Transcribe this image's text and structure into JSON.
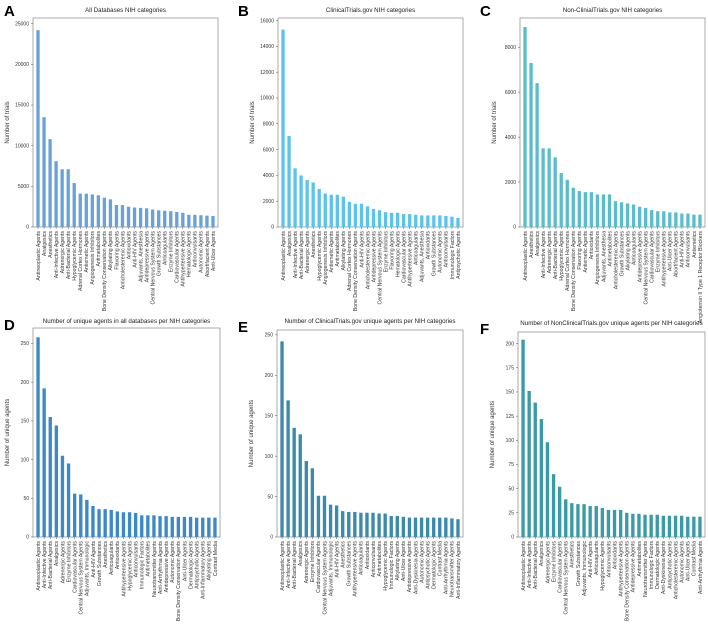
{
  "chart_data": [
    {
      "panel": "A",
      "type": "bar",
      "title": "All Databases NIH categories",
      "xlabel": "",
      "ylabel": "Number of trials",
      "ylim": [
        0,
        25700
      ],
      "yticks": [
        0,
        5000,
        10000,
        15000,
        20000,
        25000
      ],
      "color": "#6aa2d8",
      "grid": false,
      "categories": [
        "Antineoplastic Agents",
        "Analgesics",
        "Anesthetics",
        "Anti-Infective Agents",
        "Adrenergic Agents",
        "Anti-Bacterial Agents",
        "Hypoglycemic Agents",
        "Adrenal Cortex Hormones",
        "Antiemetic Agents",
        "Angiogenesis Inhibitors",
        "Antimetabolites",
        "Bone Density Conservation Agents",
        "Alkylating Agents",
        "Flavoring Agents",
        "Anticholesteremic Agents",
        "Antioxidants",
        "Anti-HIV Agents",
        "Adjuvants, Anesthesia",
        "Antidepressive Agents",
        "Central Nervous System Agents",
        "Growth Substances",
        "Anticoagulants",
        "Enzyme Inhibitors",
        "Cardiovascular Agents",
        "Antihypertensive Agents",
        "Hematologic Agents",
        "Anticonvulsants",
        "Autonomic Agents",
        "Abortifacient Agents",
        "Anti-Ulcer Agents"
      ],
      "values": [
        24200,
        13500,
        10800,
        8100,
        7100,
        7100,
        5400,
        4100,
        4100,
        4000,
        3900,
        3600,
        3400,
        2700,
        2700,
        2500,
        2400,
        2350,
        2300,
        2150,
        2050,
        2000,
        1950,
        1850,
        1750,
        1500,
        1500,
        1450,
        1400,
        1350
      ]
    },
    {
      "panel": "B",
      "type": "bar",
      "title": "ClinicalTrials.gov NIH categories",
      "xlabel": "",
      "ylabel": "Number of trials",
      "ylim": [
        0,
        16200
      ],
      "yticks": [
        0,
        2000,
        4000,
        6000,
        8000,
        10000,
        12000,
        14000,
        16000
      ],
      "color": "#5cc3ea",
      "grid": false,
      "categories": [
        "Antineoplastic Agents",
        "Analgesics",
        "Anti-Infective Agents",
        "Anti-Bacterial Agents",
        "Adrenergic Agents",
        "Anesthetics",
        "Hypoglycemic Agents",
        "Angiogenesis Inhibitors",
        "Antiemetic Agents",
        "Antimetabolites",
        "Alkylating Agents",
        "Adrenal Cortex Hormones",
        "Bone Density Conservation Agents",
        "Anti-HIV Agents",
        "Anticholesteremic Agents",
        "Antidepressive Agents",
        "Central Nervous System Agents",
        "Enzyme Inhibitors",
        "Flavoring Agents",
        "Hematologic Agents",
        "Cardiovascular Agents",
        "Antihypertensive Agents",
        "Anticoagulants",
        "Adjuvants, Anesthesia",
        "Antioxidants",
        "Growth Substances",
        "Autonomic Agents",
        "Anticonvulsants",
        "Immunologic Factors",
        "Antipsychotic Agents"
      ],
      "values": [
        15300,
        7050,
        4550,
        4000,
        3650,
        3450,
        2950,
        2600,
        2500,
        2500,
        2350,
        1950,
        1800,
        1800,
        1600,
        1400,
        1300,
        1150,
        1100,
        1100,
        1000,
        1000,
        950,
        900,
        900,
        900,
        900,
        850,
        800,
        700
      ]
    },
    {
      "panel": "C",
      "type": "bar",
      "title": "Non-ClinialTrials.gov NIH categories",
      "xlabel": "",
      "ylabel": "Number of trials",
      "ylim": [
        0,
        9300
      ],
      "yticks": [
        0,
        2000,
        4000,
        6000,
        8000
      ],
      "color": "#5bbdcc",
      "grid": false,
      "categories": [
        "Antineoplastic Agents",
        "Anesthetics",
        "Analgesics",
        "Anti-Infective Agents",
        "Adrenergic Agents",
        "Anti-Bacterial Agents",
        "Hypoglycemic Agents",
        "Adrenal Cortex Hormones",
        "Bone Density Conservation Agents",
        "Flavoring Agents",
        "Antiemetic Agents",
        "Antioxidants",
        "Angiogenesis Inhibitors",
        "Adjuvants, Anesthesia",
        "Antimetabolites",
        "Anticholesteremic Agents",
        "Growth Substances",
        "Alkylating Agents",
        "Anticoagulants",
        "Antidepressive Agents",
        "Central Nervous System Agents",
        "Cardiovascular Agents",
        "Enzyme Inhibitors",
        "Antihypertensive Agents",
        "Anti-Ulcer Agents",
        "Abortifacient Agents",
        "Anti-HIV Agents",
        "Anticonvulsants",
        "Antiemetics",
        "Angiotensin II Type 1 Receptor Blockers"
      ],
      "values": [
        8900,
        7300,
        6400,
        3500,
        3500,
        3100,
        2400,
        2100,
        1750,
        1600,
        1550,
        1550,
        1450,
        1450,
        1450,
        1150,
        1100,
        1050,
        1000,
        900,
        850,
        750,
        700,
        700,
        650,
        650,
        600,
        600,
        550,
        550
      ]
    },
    {
      "panel": "D",
      "type": "bar",
      "title": "Number of unique agents in all databases per NIH categories",
      "xlabel": "",
      "ylabel": "Number of unique agents",
      "ylim": [
        0,
        270
      ],
      "yticks": [
        0,
        50,
        100,
        150,
        200,
        250
      ],
      "color": "#3d89c7",
      "grid": false,
      "categories": [
        "Antineoplastic Agents",
        "Anti-Infective Agents",
        "Anti-Bacterial Agents",
        "Analgesics",
        "Adrenergic Agents",
        "Enzyme Inhibitors",
        "Cardiovascular Agents",
        "Central Nervous System Agents",
        "Adjuvants, Immunologic",
        "Anti-HIV Agents",
        "Growth Substances",
        "Anesthetics",
        "Anticoagulants",
        "Antioxidants",
        "Antihypertensive Agents",
        "Hypoglycemic Agents",
        "Anticonvulsants",
        "Immunologic Factors",
        "Antimetabolites",
        "Neurotransmitter Agents",
        "Anti-Arrhythmia Agents",
        "Antidepressive Agents",
        "Autonomic Agents",
        "Bone Density Conservation Agents",
        "Anti-Ulcer Agents",
        "Dermatologic Agents",
        "Antipsychotic Agents",
        "Anti-Inflammatory Agents",
        "Alkylating Agents",
        "Contrast Media"
      ],
      "values": [
        258,
        192,
        155,
        144,
        105,
        95,
        56,
        55,
        48,
        40,
        36,
        36,
        35,
        33,
        32,
        32,
        31,
        28,
        28,
        28,
        27,
        27,
        26,
        26,
        26,
        26,
        25,
        25,
        25,
        25
      ]
    },
    {
      "panel": "E",
      "type": "bar",
      "title": "Number of ClinicalTrials.gov unique agents per NIH categories",
      "xlabel": "",
      "ylabel": "Number of unique agents",
      "ylim": [
        0,
        256
      ],
      "yticks": [
        0,
        50,
        100,
        150,
        200,
        250
      ],
      "color": "#3b8aa9",
      "grid": false,
      "categories": [
        "Antineoplastic Agents",
        "Anti-Infective Agents",
        "Anti-Bacterial Agents",
        "Analgesics",
        "Adrenergic Agents",
        "Enzyme Inhibitors",
        "Cardiovascular Agents",
        "Central Nervous System Agents",
        "Adjuvants, Immunologic",
        "Anti-HIV Agents",
        "Anesthetics",
        "Growth Substances",
        "Antihypertensive Agents",
        "Anticoagulants",
        "Antioxidants",
        "Anticonvulsants",
        "Antimetabolites",
        "Hypoglycemic Agents",
        "Immunologic Factors",
        "Alkylating Agents",
        "Anti-Ulcer Agents",
        "Antidepressive Agents",
        "Anti-Dyskinesia Agents",
        "Autonomic Agents",
        "Antipsychotic Agents",
        "Dermatologic Agents",
        "Contrast Media",
        "Anti-Arrhythmia Agents",
        "Neurotransmitter Agents",
        "Anti-Inflammatory Agents"
      ],
      "values": [
        242,
        169,
        135,
        127,
        94,
        85,
        51,
        51,
        40,
        39,
        32,
        31,
        31,
        30,
        30,
        30,
        29,
        29,
        26,
        26,
        25,
        24,
        24,
        24,
        24,
        24,
        24,
        24,
        23,
        22
      ]
    },
    {
      "panel": "F",
      "type": "bar",
      "title": "Number of NonClinicalTrials.gov unique agents per NIH categories",
      "xlabel": "",
      "ylabel": "Number of unique agents",
      "ylim": [
        0,
        212
      ],
      "yticks": [
        0,
        25,
        50,
        75,
        100,
        125,
        150,
        175,
        200
      ],
      "color": "#3a9aa6",
      "grid": false,
      "categories": [
        "Antineoplastic Agents",
        "Anti-Infective Agents",
        "Anti-Bacterial Agents",
        "Analgesics",
        "Adrenergic Agents",
        "Enzyme Inhibitors",
        "Cardiovascular Agents",
        "Central Nervous System Agents",
        "Anesthetics",
        "Growth Substances",
        "Adjuvants, Immunologic",
        "Anti-HIV Agents",
        "Anticoagulants",
        "Hypoglycemic Agents",
        "Anticonvulsants",
        "Antioxidants",
        "Antihypertensive Agents",
        "Bone Density Conservation Agents",
        "Antidepressive Agents",
        "Antimetabolites",
        "Neurotransmitter Agents",
        "Immunologic Factors",
        "Dermatologic Agents",
        "Anti-Dyskinesia Agents",
        "Antipsychotic Agents",
        "Anticholesteremic Agents",
        "Autonomic Agents",
        "Anti-Ulcer Agents",
        "Contrast Media",
        "Anti-Arrhythmia Agents"
      ],
      "values": [
        204,
        151,
        139,
        122,
        98,
        65,
        52,
        39,
        35,
        34,
        34,
        32,
        32,
        30,
        28,
        28,
        28,
        25,
        24,
        24,
        23,
        23,
        23,
        22,
        22,
        22,
        22,
        21,
        21,
        21
      ]
    }
  ]
}
